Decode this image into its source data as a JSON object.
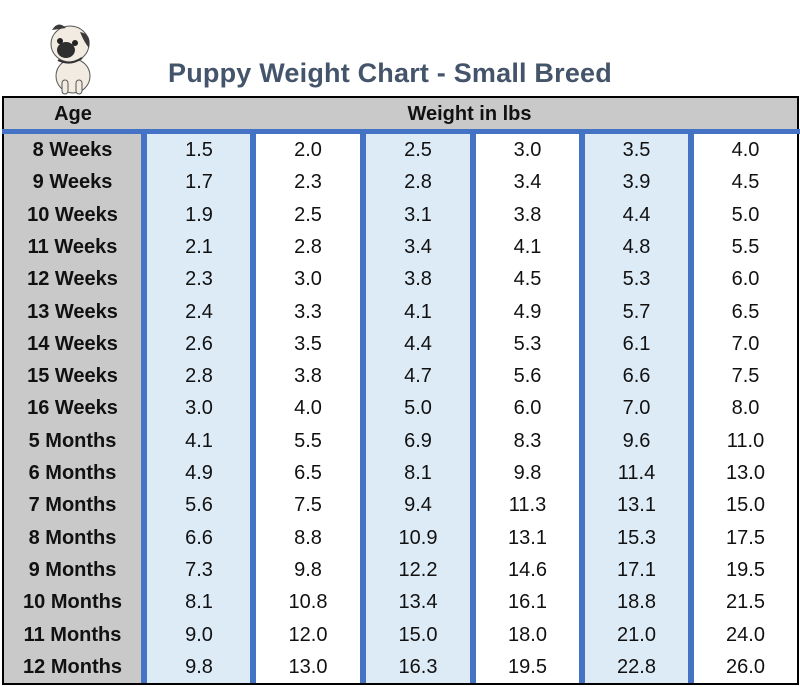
{
  "title": "Puppy Weight Chart - Small Breed",
  "logo": "pug-illustration",
  "colors": {
    "title": "#44546a",
    "accent_lines": "#4472c4",
    "shaded_column": "#ddebf7",
    "header_bg": "#c9c9c9"
  },
  "chart_data": {
    "type": "table",
    "title": "Puppy Weight Chart - Small Breed",
    "headers": {
      "age": "Age",
      "weight": "Weight in lbs"
    },
    "ages": [
      "8 Weeks",
      "9 Weeks",
      "10 Weeks",
      "11 Weeks",
      "12 Weeks",
      "13 Weeks",
      "14 Weeks",
      "15 Weeks",
      "16 Weeks",
      "5 Months",
      "6 Months",
      "7 Months",
      "8 Months",
      "9 Months",
      "10 Months",
      "11 Months",
      "12 Months"
    ],
    "rows": [
      [
        "1.5",
        "2.0",
        "2.5",
        "3.0",
        "3.5",
        "4.0"
      ],
      [
        "1.7",
        "2.3",
        "2.8",
        "3.4",
        "3.9",
        "4.5"
      ],
      [
        "1.9",
        "2.5",
        "3.1",
        "3.8",
        "4.4",
        "5.0"
      ],
      [
        "2.1",
        "2.8",
        "3.4",
        "4.1",
        "4.8",
        "5.5"
      ],
      [
        "2.3",
        "3.0",
        "3.8",
        "4.5",
        "5.3",
        "6.0"
      ],
      [
        "2.4",
        "3.3",
        "4.1",
        "4.9",
        "5.7",
        "6.5"
      ],
      [
        "2.6",
        "3.5",
        "4.4",
        "5.3",
        "6.1",
        "7.0"
      ],
      [
        "2.8",
        "3.8",
        "4.7",
        "5.6",
        "6.6",
        "7.5"
      ],
      [
        "3.0",
        "4.0",
        "5.0",
        "6.0",
        "7.0",
        "8.0"
      ],
      [
        "4.1",
        "5.5",
        "6.9",
        "8.3",
        "9.6",
        "11.0"
      ],
      [
        "4.9",
        "6.5",
        "8.1",
        "9.8",
        "11.4",
        "13.0"
      ],
      [
        "5.6",
        "7.5",
        "9.4",
        "11.3",
        "13.1",
        "15.0"
      ],
      [
        "6.6",
        "8.8",
        "10.9",
        "13.1",
        "15.3",
        "17.5"
      ],
      [
        "7.3",
        "9.8",
        "12.2",
        "14.6",
        "17.1",
        "19.5"
      ],
      [
        "8.1",
        "10.8",
        "13.4",
        "16.1",
        "18.8",
        "21.5"
      ],
      [
        "9.0",
        "12.0",
        "15.0",
        "18.0",
        "21.0",
        "24.0"
      ],
      [
        "9.8",
        "13.0",
        "16.3",
        "19.5",
        "22.8",
        "26.0"
      ]
    ]
  }
}
